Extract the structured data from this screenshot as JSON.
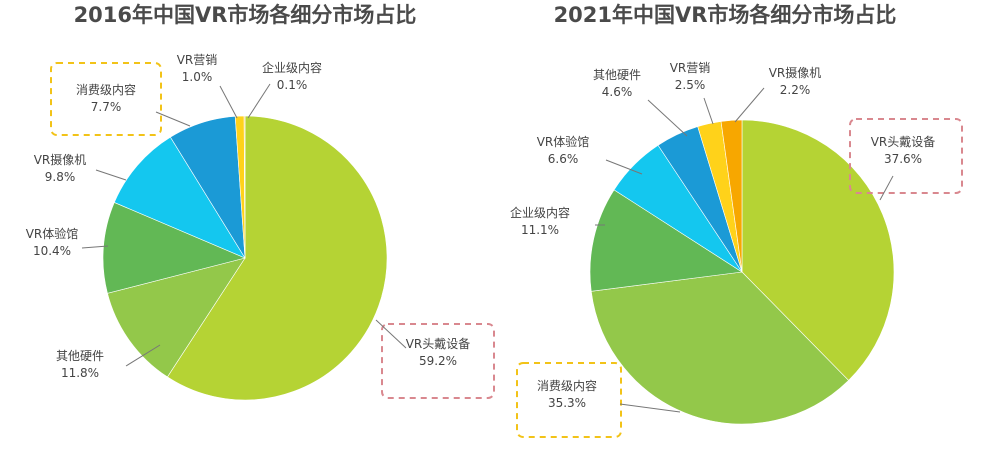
{
  "chart_data": [
    {
      "type": "pie",
      "title": "2016年中国VR市场各细分市场占比",
      "slices": [
        {
          "label": "VR头戴设备",
          "value": 59.2,
          "display": "59.2%",
          "color": "#b5d334"
        },
        {
          "label": "其他硬件",
          "value": 11.8,
          "display": "11.8%",
          "color": "#93c84a"
        },
        {
          "label": "VR体验馆",
          "value": 10.4,
          "display": "10.4%",
          "color": "#62b855"
        },
        {
          "label": "VR摄像机",
          "value": 9.8,
          "display": "9.8%",
          "color": "#14c7ef"
        },
        {
          "label": "消费级内容",
          "value": 7.7,
          "display": "7.7%",
          "color": "#1b9ad6"
        },
        {
          "label": "VR营销",
          "value": 1.0,
          "display": "1.0%",
          "color": "#ffd21a"
        },
        {
          "label": "企业级内容",
          "value": 0.1,
          "display": "0.1%",
          "color": "#f7a700"
        }
      ],
      "highlighted": [
        "消费级内容",
        "VR头戴设备"
      ]
    },
    {
      "type": "pie",
      "title": "2021年中国VR市场各细分市场占比",
      "slices": [
        {
          "label": "VR头戴设备",
          "value": 37.6,
          "display": "37.6%",
          "color": "#b5d334"
        },
        {
          "label": "消费级内容",
          "value": 35.3,
          "display": "35.3%",
          "color": "#93c84a"
        },
        {
          "label": "企业级内容",
          "value": 11.1,
          "display": "11.1%",
          "color": "#62b855"
        },
        {
          "label": "VR体验馆",
          "value": 6.6,
          "display": "6.6%",
          "color": "#14c7ef"
        },
        {
          "label": "其他硬件",
          "value": 4.6,
          "display": "4.6%",
          "color": "#1b9ad6"
        },
        {
          "label": "VR营销",
          "value": 2.5,
          "display": "2.5%",
          "color": "#ffd21a"
        },
        {
          "label": "VR摄像机",
          "value": 2.2,
          "display": "2.2%",
          "color": "#f7a700"
        }
      ],
      "highlighted": [
        "VR头戴设备",
        "消费级内容"
      ]
    }
  ]
}
